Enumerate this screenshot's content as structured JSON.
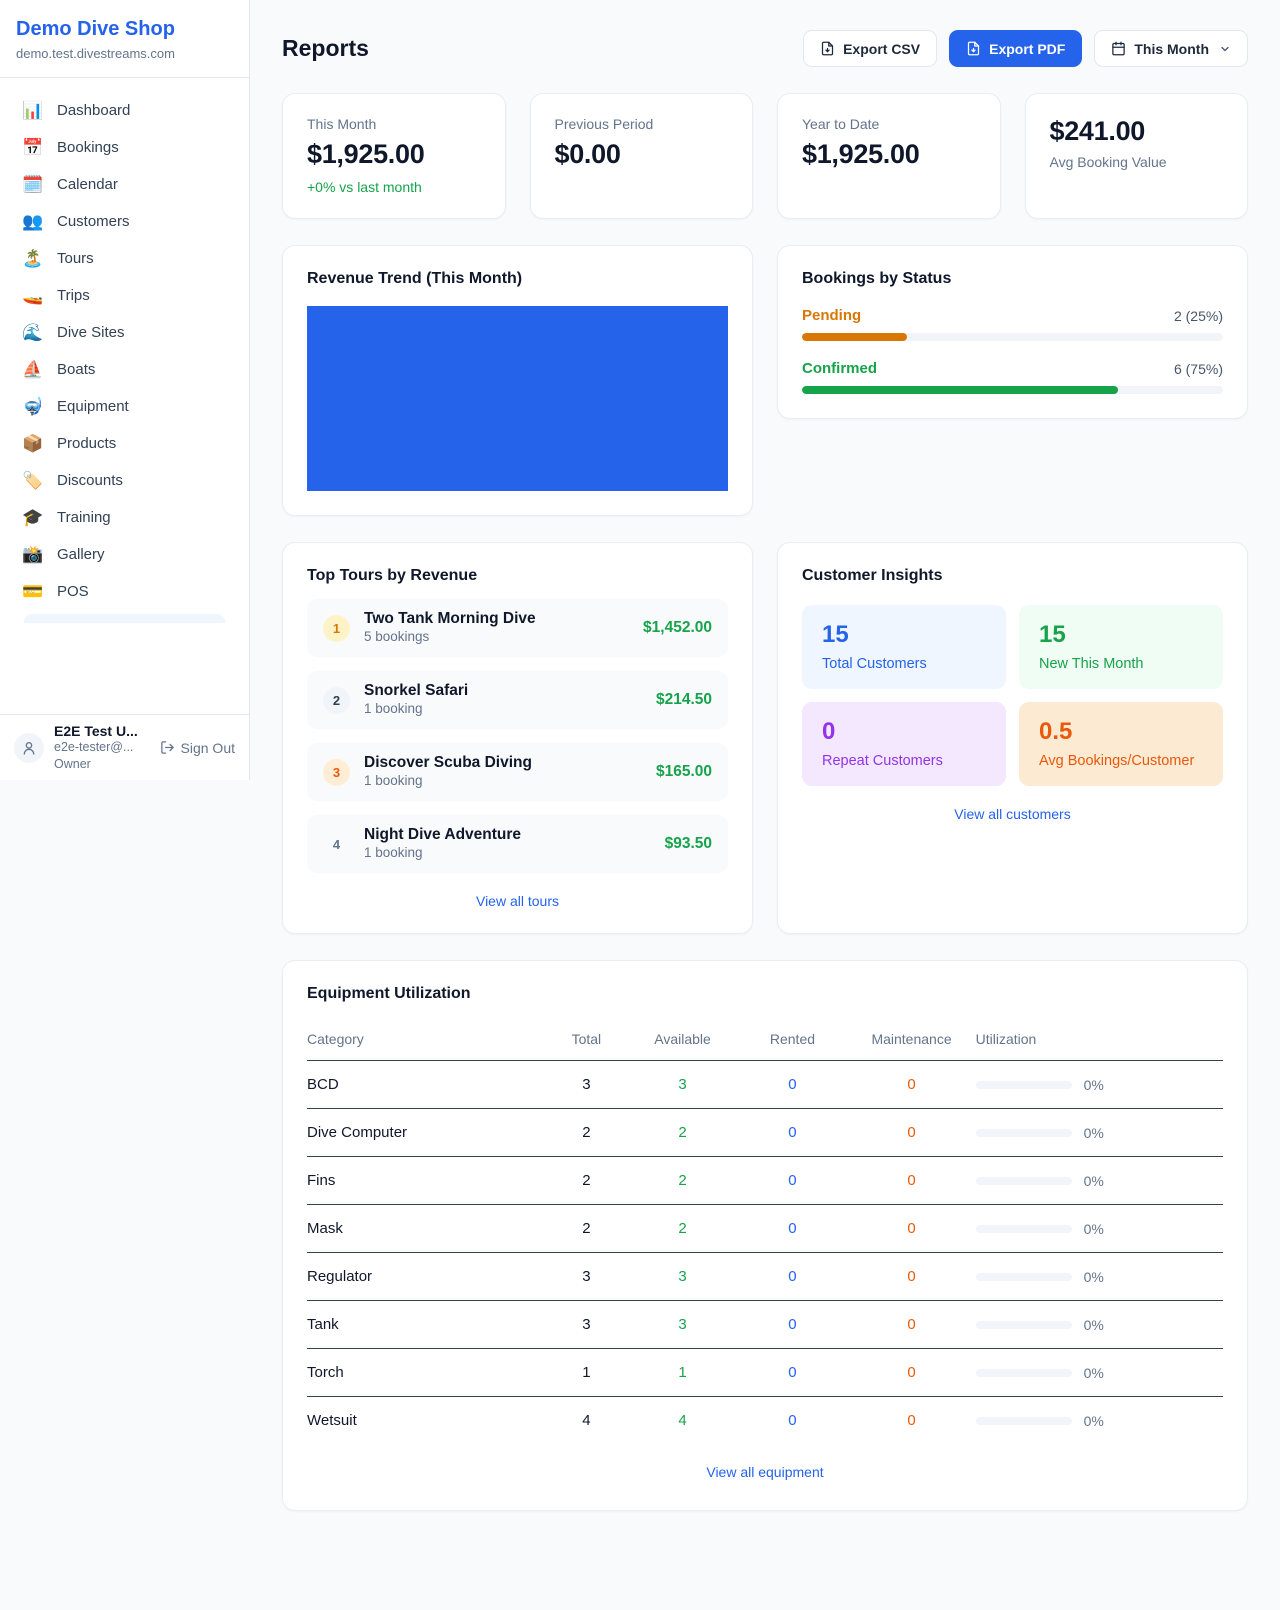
{
  "colors": {
    "accent": "#2563eb",
    "green": "#16a34a",
    "amber": "#d97706",
    "orange": "#ea580c",
    "purple": "#9333ea"
  },
  "sidebar": {
    "shop_name": "Demo Dive Shop",
    "shop_domain": "demo.test.divestreams.com",
    "nav": [
      {
        "icon": "📊",
        "label": "Dashboard"
      },
      {
        "icon": "📅",
        "label": "Bookings"
      },
      {
        "icon": "🗓️",
        "label": "Calendar"
      },
      {
        "icon": "👥",
        "label": "Customers"
      },
      {
        "icon": "🏝️",
        "label": "Tours"
      },
      {
        "icon": "🚤",
        "label": "Trips"
      },
      {
        "icon": "🌊",
        "label": "Dive Sites"
      },
      {
        "icon": "⛵",
        "label": "Boats"
      },
      {
        "icon": "🤿",
        "label": "Equipment"
      },
      {
        "icon": "📦",
        "label": "Products"
      },
      {
        "icon": "🏷️",
        "label": "Discounts"
      },
      {
        "icon": "🎓",
        "label": "Training"
      },
      {
        "icon": "📸",
        "label": "Gallery"
      },
      {
        "icon": "💳",
        "label": "POS"
      }
    ],
    "user": {
      "name": "E2E Test U...",
      "email": "e2e-tester@...",
      "role": "Owner",
      "sign_out_label": "Sign Out"
    }
  },
  "header": {
    "title": "Reports",
    "export_csv_label": "Export CSV",
    "export_pdf_label": "Export PDF",
    "period_label": "This Month"
  },
  "stats": [
    {
      "label": "This Month",
      "value": "$1,925.00",
      "note": "+0% vs last month"
    },
    {
      "label": "Previous Period",
      "value": "$0.00"
    },
    {
      "label": "Year to Date",
      "value": "$1,925.00"
    },
    {
      "label": "Avg Booking Value",
      "value": "$241.00"
    }
  ],
  "revenue_trend": {
    "title": "Revenue Trend (This Month)",
    "bar_color": "#2563eb"
  },
  "bookings_by_status": {
    "title": "Bookings by Status",
    "rows": [
      {
        "label": "Pending",
        "count": "2 (25%)",
        "pct": 25,
        "color": "#d97706"
      },
      {
        "label": "Confirmed",
        "count": "6 (75%)",
        "pct": 75,
        "color": "#16a34a"
      }
    ]
  },
  "top_tours": {
    "title": "Top Tours by Revenue",
    "view_all": "View all tours",
    "rows": [
      {
        "rank": "1",
        "title": "Two Tank Morning Dive",
        "bookings": "5 bookings",
        "amount": "$1,452.00"
      },
      {
        "rank": "2",
        "title": "Snorkel Safari",
        "bookings": "1 booking",
        "amount": "$214.50"
      },
      {
        "rank": "3",
        "title": "Discover Scuba Diving",
        "bookings": "1 booking",
        "amount": "$165.00"
      },
      {
        "rank": "4",
        "title": "Night Dive Adventure",
        "bookings": "1 booking",
        "amount": "$93.50"
      }
    ]
  },
  "customer_insights": {
    "title": "Customer Insights",
    "view_all": "View all customers",
    "tiles": [
      {
        "value": "15",
        "label": "Total Customers",
        "bg": "#eff6ff",
        "color": "#2563eb"
      },
      {
        "value": "15",
        "label": "New This Month",
        "bg": "#f0fdf4",
        "color": "#16a34a"
      },
      {
        "value": "0",
        "label": "Repeat Customers",
        "bg": "#f3e8ff",
        "color": "#9333ea"
      },
      {
        "value": "0.5",
        "label": "Avg Bookings/Customer",
        "bg": "#fdead2",
        "color": "#ea580c"
      }
    ]
  },
  "equipment": {
    "title": "Equipment Utilization",
    "view_all": "View all equipment",
    "headers": [
      "Category",
      "Total",
      "Available",
      "Rented",
      "Maintenance",
      "Utilization"
    ],
    "rows": [
      {
        "category": "BCD",
        "total": "3",
        "available": "3",
        "rented": "0",
        "maintenance": "0",
        "utilization": "0%",
        "pct": 0
      },
      {
        "category": "Dive Computer",
        "total": "2",
        "available": "2",
        "rented": "0",
        "maintenance": "0",
        "utilization": "0%",
        "pct": 0
      },
      {
        "category": "Fins",
        "total": "2",
        "available": "2",
        "rented": "0",
        "maintenance": "0",
        "utilization": "0%",
        "pct": 0
      },
      {
        "category": "Mask",
        "total": "2",
        "available": "2",
        "rented": "0",
        "maintenance": "0",
        "utilization": "0%",
        "pct": 0
      },
      {
        "category": "Regulator",
        "total": "3",
        "available": "3",
        "rented": "0",
        "maintenance": "0",
        "utilization": "0%",
        "pct": 0
      },
      {
        "category": "Tank",
        "total": "3",
        "available": "3",
        "rented": "0",
        "maintenance": "0",
        "utilization": "0%",
        "pct": 0
      },
      {
        "category": "Torch",
        "total": "1",
        "available": "1",
        "rented": "0",
        "maintenance": "0",
        "utilization": "0%",
        "pct": 0
      },
      {
        "category": "Wetsuit",
        "total": "4",
        "available": "4",
        "rented": "0",
        "maintenance": "0",
        "utilization": "0%",
        "pct": 0
      }
    ]
  }
}
